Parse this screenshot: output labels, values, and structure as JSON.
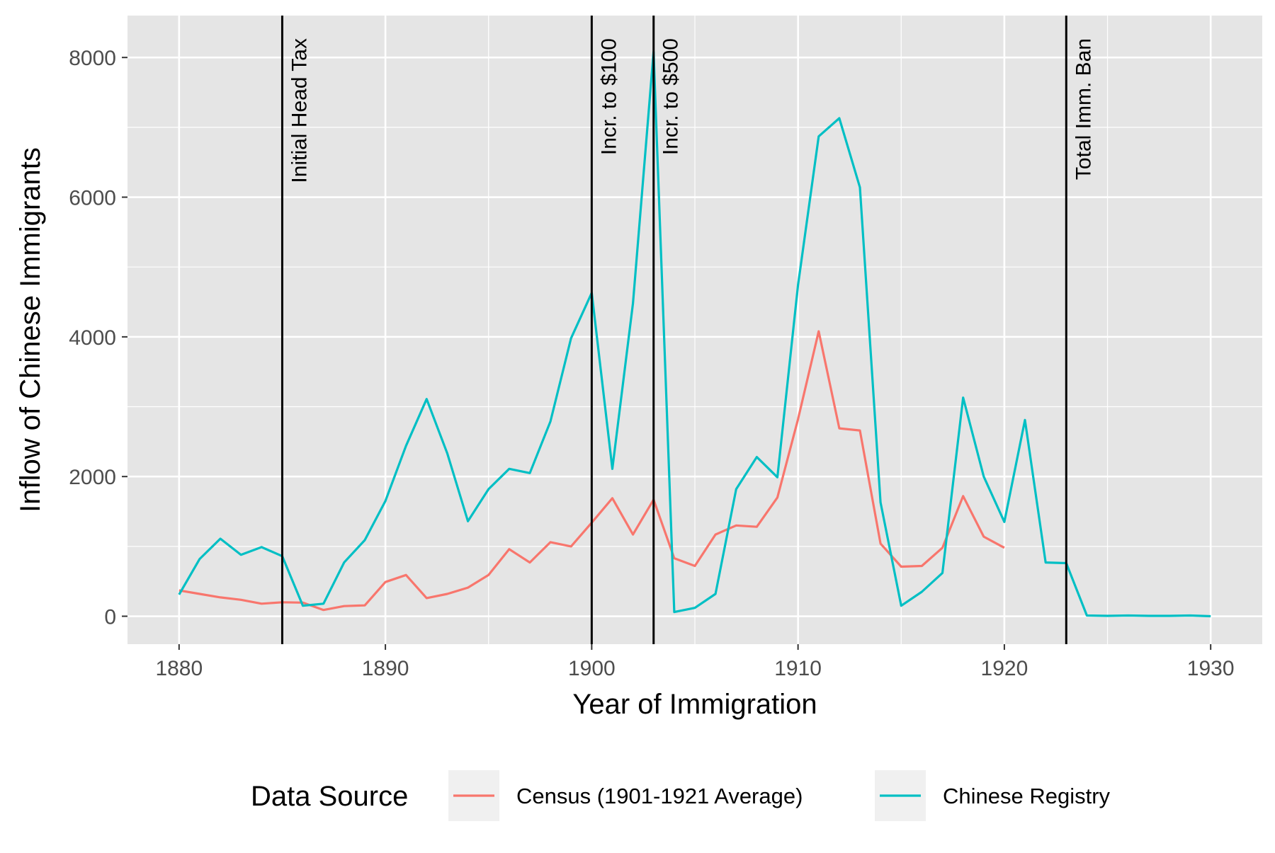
{
  "chart_data": {
    "type": "line",
    "xlabel": "Year of Immigration",
    "ylabel": "Inflow of Chinese Immigrants",
    "xlim": [
      1877.5,
      1932.5
    ],
    "ylim": [
      -400,
      8600
    ],
    "x_ticks": [
      1880,
      1890,
      1900,
      1910,
      1920,
      1930
    ],
    "y_ticks": [
      0,
      2000,
      4000,
      6000,
      8000
    ],
    "x_minor_ticks": [
      1885,
      1895,
      1905,
      1915,
      1925
    ],
    "y_minor_ticks": [
      1000,
      3000,
      5000,
      7000
    ],
    "grid": true,
    "background": "#e5e5e5",
    "legend": {
      "title": "Data Source",
      "position": "bottom",
      "entries": [
        "Census (1901-1921 Average)",
        "Chinese Registry"
      ]
    },
    "series": [
      {
        "name": "Census (1901-1921 Average)",
        "color": "#f8766d",
        "x": [
          1880,
          1881,
          1882,
          1883,
          1884,
          1885,
          1886,
          1887,
          1888,
          1889,
          1890,
          1891,
          1892,
          1893,
          1894,
          1895,
          1896,
          1897,
          1898,
          1899,
          1900,
          1901,
          1902,
          1903,
          1904,
          1905,
          1906,
          1907,
          1908,
          1909,
          1910,
          1911,
          1912,
          1913,
          1914,
          1915,
          1916,
          1917,
          1918,
          1919,
          1920
        ],
        "values": [
          370,
          320,
          270,
          235,
          180,
          200,
          195,
          90,
          145,
          155,
          490,
          590,
          260,
          320,
          410,
          590,
          960,
          770,
          1060,
          1000,
          1340,
          1690,
          1170,
          1670,
          830,
          720,
          1170,
          1300,
          1280,
          1700,
          2820,
          4080,
          2690,
          2660,
          1040,
          710,
          720,
          980,
          1720,
          1140,
          980
        ]
      },
      {
        "name": "Chinese Registry",
        "color": "#00bfc4",
        "x": [
          1880,
          1881,
          1882,
          1883,
          1884,
          1885,
          1886,
          1887,
          1888,
          1889,
          1890,
          1891,
          1892,
          1893,
          1894,
          1895,
          1896,
          1897,
          1898,
          1899,
          1900,
          1901,
          1902,
          1903,
          1904,
          1905,
          1906,
          1907,
          1908,
          1909,
          1910,
          1911,
          1912,
          1913,
          1914,
          1915,
          1916,
          1917,
          1918,
          1919,
          1920,
          1921,
          1922,
          1923,
          1924,
          1925,
          1926,
          1927,
          1928,
          1929,
          1930
        ],
        "values": [
          310,
          820,
          1110,
          880,
          990,
          860,
          150,
          180,
          770,
          1090,
          1650,
          2440,
          3110,
          2330,
          1360,
          1820,
          2110,
          2050,
          2790,
          3980,
          4630,
          2110,
          4480,
          8080,
          60,
          120,
          320,
          1820,
          2280,
          1990,
          4740,
          6870,
          7130,
          6140,
          1630,
          150,
          350,
          620,
          3130,
          2000,
          1350,
          2810,
          770,
          760,
          10,
          5,
          10,
          5,
          5,
          10,
          0
        ]
      }
    ],
    "annotations": [
      {
        "x": 1885,
        "label": "Initial Head Tax"
      },
      {
        "x": 1900,
        "label": "Incr. to $100"
      },
      {
        "x": 1903,
        "label": "Incr. to $500"
      },
      {
        "x": 1923,
        "label": "Total Imm. Ban"
      }
    ]
  }
}
